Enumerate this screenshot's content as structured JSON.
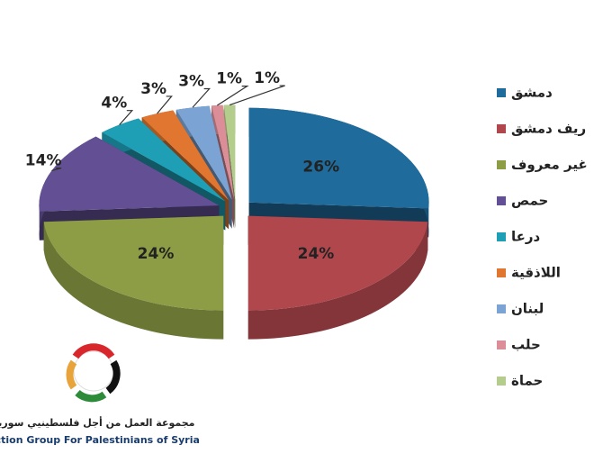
{
  "chart_data": {
    "type": "pie3d",
    "categories": [
      "دمشق",
      "ريف دمشق",
      "غير معروف",
      "حمص",
      "درعا",
      "اللاذقية",
      "لبنان",
      "حلب",
      "حماة"
    ],
    "values": [
      26,
      24,
      24,
      14,
      4,
      3,
      3,
      1,
      1
    ],
    "value_labels": [
      "26%",
      "24%",
      "24%",
      "14%",
      "4%",
      "3%",
      "3%",
      "1%",
      "1%"
    ],
    "colors": [
      "#1f6b9c",
      "#b0474c",
      "#8c9d45",
      "#634f94",
      "#1f9fb6",
      "#e0762f",
      "#7ba3d3",
      "#dc8e98",
      "#b5cd8c"
    ],
    "legend": "right"
  },
  "logo": {
    "arabic": "مجموعة العمل من أجل فلسطينيي سورية",
    "english": "Action Group For Palestinians of Syria"
  }
}
